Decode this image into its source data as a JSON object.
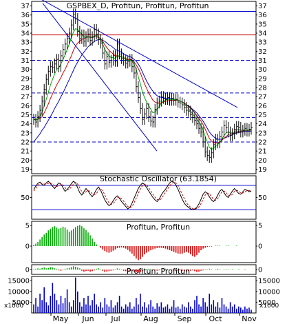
{
  "chart_data": [
    {
      "panel": "price",
      "type": "line",
      "title": "GSPBEX_D, Profitun, Profitun, Profitun",
      "ylim": [
        18.5,
        37.5
      ],
      "yticks": [
        19,
        20,
        21,
        22,
        23,
        24,
        25,
        26,
        27,
        28,
        29,
        30,
        31,
        32,
        33,
        34,
        35,
        36,
        37
      ],
      "xlabels": [
        "May",
        "Jun",
        "Jul",
        "Aug",
        "Sep",
        "Oct",
        "Nov"
      ],
      "grid": "off",
      "horizontal_levels": [
        {
          "value": 36.4,
          "style": "solid",
          "color": "#0000cc"
        },
        {
          "value": 33.8,
          "style": "solid",
          "color": "#cc0000"
        },
        {
          "value": 31.0,
          "style": "dashed",
          "color": "#0000cc"
        },
        {
          "value": 27.4,
          "style": "dashed",
          "color": "#0000cc"
        },
        {
          "value": 24.7,
          "style": "dashed",
          "color": "#0000cc"
        },
        {
          "value": 22.0,
          "style": "dashed",
          "color": "#0000cc"
        }
      ],
      "close": [
        24.5,
        24.2,
        24.8,
        25.5,
        26.5,
        27.8,
        28.9,
        29.8,
        30.3,
        30.2,
        30.6,
        31.1,
        30.3,
        31.5,
        32.2,
        32.8,
        33.4,
        34.0,
        34.9,
        36.1,
        35.6,
        34.2,
        33.4,
        33.8,
        33.1,
        33.6,
        33.9,
        33.2,
        33.6,
        34.4,
        33.9,
        33.3,
        32.9,
        31.8,
        30.6,
        31.4,
        30.8,
        31.0,
        31.5,
        30.9,
        32.8,
        31.7,
        31.2,
        31.0,
        30.7,
        30.9,
        31.1,
        30.3,
        29.6,
        28.1,
        26.9,
        25.7,
        24.5,
        25.1,
        25.7,
        24.8,
        24.3,
        24.2,
        25.6,
        26.3,
        26.5,
        27.0,
        26.8,
        26.7,
        26.9,
        26.6,
        26.8,
        26.6,
        26.7,
        26.4,
        26.3,
        26.1,
        25.8,
        25.5,
        25.4,
        25.0,
        24.7,
        24.4,
        24.0,
        23.5,
        23.1,
        22.0,
        20.9,
        20.5,
        20.3,
        20.8,
        21.7,
        22.3,
        21.9,
        22.6,
        23.1,
        23.8,
        23.6,
        23.1,
        22.7,
        22.9,
        23.4,
        23.7,
        23.6,
        23.1,
        23.3,
        23.5,
        23.2,
        23.4,
        23.6
      ],
      "ma_fast": [
        24.5,
        24.4,
        24.5,
        24.8,
        25.3,
        26.0,
        26.7,
        27.5,
        28.3,
        28.9,
        29.5,
        30.0,
        30.2,
        30.6,
        31.1,
        31.6,
        32.2,
        32.8,
        33.5,
        34.1,
        34.5,
        34.4,
        34.1,
        33.9,
        33.6,
        33.5,
        33.6,
        33.5,
        33.5,
        33.7,
        33.8,
        33.6,
        33.3,
        32.8,
        32.2,
        31.8,
        31.5,
        31.3,
        31.3,
        31.2,
        31.5,
        31.5,
        31.4,
        31.3,
        31.1,
        31.0,
        31.0,
        30.9,
        30.6,
        30.0,
        29.2,
        28.4,
        27.5,
        26.9,
        26.4,
        26.0,
        25.6,
        25.2,
        25.3,
        25.6,
        25.9,
        26.3,
        26.5,
        26.6,
        26.7,
        26.7,
        26.7,
        26.7,
        26.7,
        26.6,
        26.5,
        26.4,
        26.2,
        25.9,
        25.7,
        25.4,
        25.1,
        24.8,
        24.5,
        24.2,
        23.8,
        23.3,
        22.6,
        22.0,
        21.4,
        21.2,
        21.3,
        21.6,
        21.7,
        22.0,
        22.3,
        22.7,
        23.0,
        23.1,
        23.0,
        23.0,
        23.1,
        23.3,
        23.4,
        23.3,
        23.3,
        23.3,
        23.3,
        23.3,
        23.4
      ],
      "ma_mid": [
        24.5,
        24.5,
        24.5,
        24.6,
        24.8,
        25.2,
        25.7,
        26.2,
        26.8,
        27.3,
        27.8,
        28.3,
        28.7,
        29.1,
        29.6,
        30.0,
        30.5,
        31.0,
        31.5,
        32.1,
        32.6,
        32.9,
        33.1,
        33.3,
        33.4,
        33.5,
        33.6,
        33.6,
        33.5,
        33.6,
        33.6,
        33.5,
        33.4,
        33.1,
        32.7,
        32.4,
        32.1,
        31.9,
        31.7,
        31.5,
        31.5,
        31.4,
        31.4,
        31.3,
        31.2,
        31.1,
        31.1,
        31.0,
        30.8,
        30.5,
        30.1,
        29.6,
        29.0,
        28.4,
        27.9,
        27.4,
        27.0,
        26.6,
        26.4,
        26.3,
        26.3,
        26.3,
        26.4,
        26.5,
        26.5,
        26.6,
        26.6,
        26.6,
        26.6,
        26.6,
        26.5,
        26.4,
        26.3,
        26.1,
        25.9,
        25.7,
        25.5,
        25.2,
        24.9,
        24.6,
        24.3,
        23.9,
        23.4,
        22.9,
        22.4,
        22.1,
        21.9,
        21.9,
        21.9,
        22.0,
        22.2,
        22.4,
        22.6,
        22.8,
        22.9,
        22.9,
        23.0,
        23.1,
        23.2,
        23.2,
        23.2,
        23.3,
        23.3,
        23.3,
        23.3
      ],
      "ma_slow": [
        22.0,
        22.3,
        22.6,
        22.9,
        23.3,
        23.6,
        24.0,
        24.4,
        24.8,
        25.2,
        25.7,
        26.1,
        26.5,
        27.0,
        27.4,
        27.9,
        28.4,
        28.9,
        29.4,
        29.9,
        30.4,
        30.8,
        31.2,
        31.6,
        31.9,
        32.2,
        32.5,
        32.7,
        32.9,
        33.1,
        33.2,
        33.3,
        33.3,
        33.2,
        33.1,
        32.9,
        32.7,
        32.6,
        32.4,
        32.2,
        32.1,
        32.0,
        31.9,
        31.7,
        31.6,
        31.5,
        31.4,
        31.3,
        31.1,
        30.9,
        30.6,
        30.2,
        29.7,
        29.2,
        28.7,
        28.3,
        27.9,
        27.6,
        27.3,
        27.1,
        27.0,
        26.9,
        26.9,
        26.8,
        26.8,
        26.8,
        26.8,
        26.7,
        26.7,
        26.6,
        26.5,
        26.4,
        26.3,
        26.1,
        26.0,
        25.8,
        25.6,
        25.4,
        25.2,
        24.9,
        24.6,
        24.3,
        23.9,
        23.5,
        23.1,
        22.8,
        22.6,
        22.4,
        22.3,
        22.3,
        22.3,
        22.4,
        22.5,
        22.6,
        22.7,
        22.8,
        22.9,
        23.0,
        23.0,
        23.1,
        23.1,
        23.2,
        23.2,
        23.2,
        23.2
      ]
    },
    {
      "panel": "stochastic",
      "type": "line",
      "title": "Stochastic Oscillator (63.1854)",
      "ylim": [
        0,
        100
      ],
      "yticks": [
        50
      ],
      "levels": [
        80,
        20
      ],
      "k": [
        70,
        78,
        85,
        88,
        82,
        80,
        86,
        90,
        84,
        78,
        72,
        80,
        86,
        83,
        74,
        65,
        70,
        76,
        84,
        90,
        86,
        74,
        62,
        56,
        64,
        72,
        66,
        58,
        52,
        60,
        70,
        76,
        68,
        56,
        44,
        36,
        30,
        34,
        42,
        50,
        54,
        48,
        40,
        34,
        28,
        22,
        26,
        36,
        48,
        60,
        72,
        80,
        86,
        82,
        74,
        66,
        58,
        50,
        44,
        40,
        46,
        56,
        64,
        70,
        78,
        86,
        90,
        88,
        80,
        70,
        58,
        46,
        36,
        30,
        26,
        22,
        20,
        22,
        26,
        34,
        46,
        58,
        64,
        60,
        52,
        44,
        40,
        46,
        56,
        66,
        70,
        62,
        54,
        50,
        58,
        66,
        72,
        66,
        60,
        58,
        64,
        70,
        68,
        64,
        66
      ],
      "d": [
        66,
        72,
        80,
        85,
        85,
        83,
        83,
        85,
        86,
        84,
        78,
        77,
        79,
        82,
        81,
        74,
        69,
        70,
        76,
        83,
        87,
        83,
        74,
        64,
        60,
        64,
        67,
        65,
        59,
        57,
        60,
        68,
        71,
        67,
        56,
        45,
        37,
        33,
        35,
        42,
        49,
        51,
        47,
        41,
        34,
        28,
        25,
        28,
        37,
        48,
        60,
        71,
        79,
        83,
        80,
        74,
        66,
        58,
        51,
        45,
        43,
        47,
        55,
        63,
        71,
        78,
        85,
        88,
        86,
        79,
        69,
        58,
        47,
        37,
        31,
        26,
        23,
        21,
        23,
        27,
        35,
        46,
        56,
        61,
        59,
        52,
        45,
        43,
        47,
        56,
        64,
        66,
        62,
        55,
        54,
        58,
        65,
        68,
        66,
        61,
        61,
        64,
        67,
        67,
        66
      ]
    },
    {
      "panel": "histogram-1",
      "type": "bar",
      "title": "Profitun, Profitun",
      "ylim": [
        -4,
        6
      ],
      "yticks": [
        0,
        5
      ],
      "values": [
        0.3,
        0.6,
        1.0,
        1.6,
        2.2,
        2.8,
        3.2,
        3.8,
        4.2,
        4.6,
        4.8,
        4.5,
        4.2,
        4.4,
        4.7,
        4.5,
        4.0,
        3.5,
        3.8,
        4.2,
        4.6,
        4.9,
        5.1,
        4.8,
        4.3,
        3.9,
        3.3,
        2.6,
        1.8,
        1.0,
        0.4,
        0.0,
        -0.4,
        -0.8,
        -1.2,
        -1.5,
        -1.6,
        -1.4,
        -1.1,
        -0.8,
        -0.5,
        -0.4,
        -0.3,
        -0.4,
        -0.6,
        -0.9,
        -1.3,
        -1.8,
        -2.4,
        -3.0,
        -3.4,
        -3.2,
        -2.6,
        -2.0,
        -1.6,
        -1.3,
        -1.0,
        -0.8,
        -0.6,
        -0.5,
        -0.4,
        -0.4,
        -0.5,
        -0.6,
        -0.8,
        -1.0,
        -1.2,
        -1.4,
        -1.6,
        -1.8,
        -1.9,
        -1.8,
        -1.6,
        -1.4,
        -1.6,
        -2.0,
        -2.4,
        -2.6,
        -2.2,
        -1.6,
        -1.0,
        -0.6,
        -0.4,
        -0.2,
        -0.1,
        -0.1,
        0.0,
        0.1,
        0.1,
        0.1,
        0.0,
        0.0,
        0.1,
        0.1,
        0.0,
        0.0,
        0.0,
        0.1,
        0.0,
        0.0,
        0.0,
        0.0,
        0.0,
        0.0,
        0.0
      ]
    },
    {
      "panel": "histogram-2",
      "type": "bar",
      "title": "Profitun, Profitun",
      "ylim": [
        -1.2,
        1.2
      ],
      "yticks": [
        0
      ],
      "values": [
        0.1,
        0.2,
        0.3,
        0.2,
        0.4,
        0.5,
        0.3,
        0.4,
        0.6,
        0.5,
        0.3,
        0.2,
        -0.2,
        -0.3,
        -0.1,
        0.2,
        0.3,
        0.4,
        0.6,
        0.8,
        0.7,
        0.5,
        0.3,
        -0.3,
        -0.5,
        -0.4,
        -0.3,
        -0.5,
        -0.4,
        -0.2,
        0.2,
        0.3,
        0.1,
        -0.3,
        -0.6,
        -0.5,
        -0.4,
        -0.3,
        -0.2,
        0.1,
        0.3,
        0.2,
        -0.1,
        -0.3,
        -0.4,
        -0.5,
        -0.4,
        -0.3,
        -0.5,
        -0.7,
        -0.8,
        -0.6,
        -0.4,
        -0.2,
        0.1,
        0.2,
        0.1,
        -0.1,
        -0.2,
        -0.3,
        -0.2,
        -0.1,
        0.1,
        0.2,
        0.1,
        -0.1,
        -0.2,
        -0.3,
        -0.4,
        -0.3,
        -0.2,
        -0.3,
        -0.4,
        -0.5,
        -0.4,
        -0.3,
        -0.2,
        -0.4,
        -0.6,
        -0.5,
        -0.3,
        -0.2,
        -0.1,
        0.1,
        0.2,
        0.1,
        0.0,
        0.1,
        0.2,
        0.1,
        0.0,
        -0.1,
        0.1,
        0.1,
        0.0,
        0.1,
        0.0,
        0.0,
        0.1,
        0.0,
        0.0,
        0.1,
        0.0,
        0.0,
        0.0
      ]
    },
    {
      "panel": "volume",
      "type": "bar",
      "title": "",
      "ylim": [
        0,
        17000
      ],
      "yticks": [
        5000,
        10000,
        15000
      ],
      "unit_label": "x1000",
      "values": [
        4000,
        7000,
        3000,
        9000,
        6000,
        12000,
        5000,
        3500,
        8000,
        14000,
        9000,
        6000,
        4000,
        8000,
        4500,
        7000,
        11000,
        5000,
        3000,
        6000,
        16500,
        10000,
        5000,
        3000,
        7000,
        4000,
        8000,
        3500,
        6000,
        9000,
        4000,
        3000,
        5000,
        2500,
        7000,
        4000,
        3000,
        6000,
        2500,
        3500,
        5000,
        8000,
        3000,
        2000,
        4000,
        3000,
        5000,
        2000,
        3000,
        7000,
        4000,
        9000,
        3000,
        5000,
        2500,
        4000,
        6000,
        3000,
        2000,
        4500,
        3000,
        5000,
        2500,
        3000,
        4000,
        2000,
        3000,
        6000,
        2500,
        3000,
        2000,
        4000,
        3000,
        2500,
        5000,
        3000,
        2000,
        6000,
        8000,
        4000,
        3000,
        7000,
        5000,
        3000,
        9000,
        4000,
        6000,
        3000,
        5000,
        2500,
        7000,
        4000,
        3000,
        2000,
        5000,
        3000,
        4000,
        2000,
        3000,
        2500,
        1500,
        3000,
        2000,
        2500,
        1500
      ]
    }
  ]
}
